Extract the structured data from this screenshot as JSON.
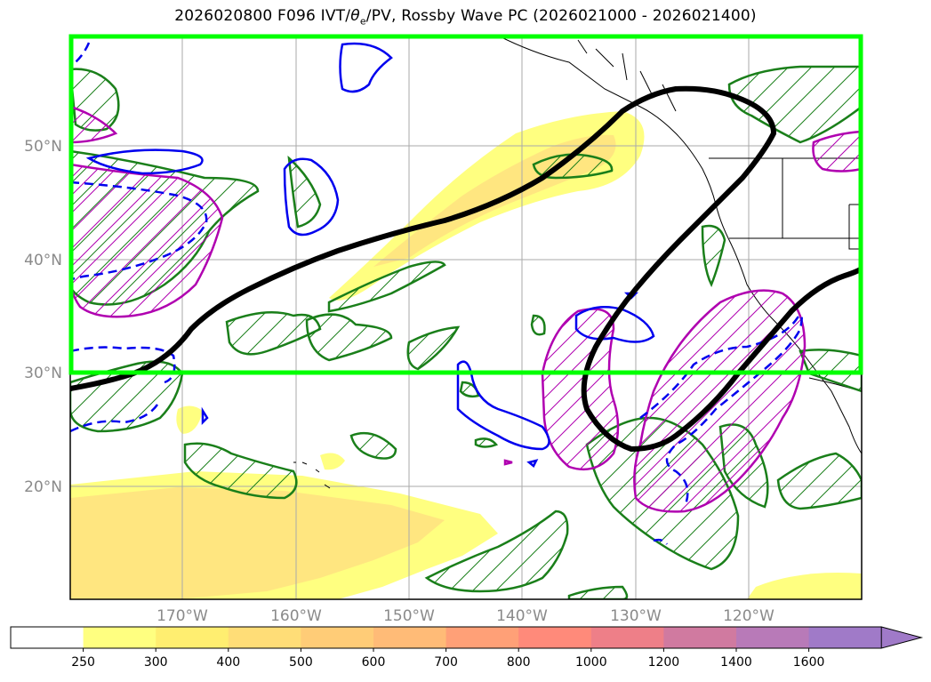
{
  "title": {
    "prefix": "2026020800 F096 IVT/",
    "theta": "θ",
    "theta_sub": "e",
    "suffix": "/PV, Rossby Wave PC (2026021000 - 2026021400)"
  },
  "map": {
    "lat_labels": [
      "50°N",
      "40°N",
      "30°N",
      "20°N"
    ],
    "lon_labels": [
      "170°W",
      "160°W",
      "150°W",
      "140°W",
      "130°W",
      "120°W"
    ],
    "colors": {
      "rossby_wave_pc": "#000000",
      "highlight_box": "#00ff00",
      "green_contour": "#1a7f1a",
      "magenta_contour": "#b000b0",
      "blue_contour": "#0000ee",
      "ivt_250": "#ffff80",
      "ivt_300": "#ffe066"
    }
  },
  "colorbar": {
    "ticks": [
      "250",
      "300",
      "400",
      "500",
      "600",
      "700",
      "800",
      "1000",
      "1200",
      "1400",
      "1600"
    ],
    "colors": [
      "#ffffff",
      "#ffff80",
      "#ffee70",
      "#ffdd77",
      "#ffcc77",
      "#ffbb77",
      "#ffa077",
      "#ff8a7a",
      "#ee7f88",
      "#d07aa0",
      "#b87ab8",
      "#a07ac8"
    ]
  }
}
